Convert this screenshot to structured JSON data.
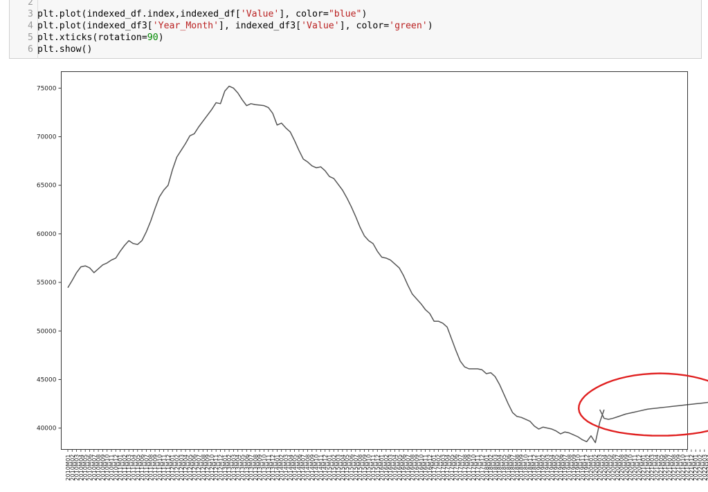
{
  "code_cell": {
    "lines": [
      {
        "num": "2",
        "segments": []
      },
      {
        "num": "3",
        "segments": [
          {
            "t": "plt.plot(indexed_df.index,indexed_df[",
            "k": "n"
          },
          {
            "t": "'Value'",
            "k": "s"
          },
          {
            "t": "], color=",
            "k": "n"
          },
          {
            "t": "\"blue\"",
            "k": "s"
          },
          {
            "t": ")",
            "k": "n"
          }
        ]
      },
      {
        "num": "4",
        "segments": [
          {
            "t": "plt.plot(indexed_df3[",
            "k": "n"
          },
          {
            "t": "'Year_Month'",
            "k": "s"
          },
          {
            "t": "], indexed_df3[",
            "k": "n"
          },
          {
            "t": "'Value'",
            "k": "s"
          },
          {
            "t": "], color=",
            "k": "n"
          },
          {
            "t": "'green'",
            "k": "s"
          },
          {
            "t": ")",
            "k": "n"
          }
        ]
      },
      {
        "num": "5",
        "segments": [
          {
            "t": "plt.xticks(rotation=",
            "k": "n"
          },
          {
            "t": "90",
            "k": "d"
          },
          {
            "t": ")",
            "k": "n"
          }
        ]
      },
      {
        "num": "6",
        "segments": [
          {
            "t": "plt.show()",
            "k": "n"
          }
        ]
      }
    ]
  },
  "chart_data": {
    "type": "line",
    "xlabel": "",
    "ylabel": "",
    "yticks": [
      40000,
      45000,
      50000,
      55000,
      60000,
      65000,
      70000,
      75000
    ],
    "ylim": [
      37800,
      76700
    ],
    "grid": false,
    "line_color": "#555555",
    "annotation_color": "#e02020",
    "xtick_labels": [
      "2010M01",
      "2010M02",
      "2010M03",
      "2010M04",
      "2010M05",
      "2010M06",
      "2010M07",
      "2010M08",
      "2010M09",
      "2010M10",
      "2010M11",
      "2010M12",
      "2011M01",
      "2011M02",
      "2011M03",
      "2011M04",
      "2011M05",
      "2011M06",
      "2011M07",
      "2011M08",
      "2011M09",
      "2011M10",
      "2011M11",
      "2011M12",
      "2012M01",
      "2012M02",
      "2012M03",
      "2012M04",
      "2012M05",
      "2012M06",
      "2012M07",
      "2012M08",
      "2012M09",
      "2012M10",
      "2012M11",
      "2012M12",
      "2013M01",
      "2013M02",
      "2013M03",
      "2013M04",
      "2013M05",
      "2013M06",
      "2013M07",
      "2013M08",
      "2013M09",
      "2013M10",
      "2013M11",
      "2013M12",
      "2014M01",
      "2014M02",
      "2014M03",
      "2014M04",
      "2014M05",
      "2014M06",
      "2014M07",
      "2014M08",
      "2014M09",
      "2014M10",
      "2014M11",
      "2014M12",
      "2015M01",
      "2015M02",
      "2015M03",
      "2015M04",
      "2015M05",
      "2015M06",
      "2015M07",
      "2015M08",
      "2015M09",
      "2015M10",
      "2015M11",
      "2015M12",
      "2016M01",
      "2016M02",
      "2016M03",
      "2016M04",
      "2016M05",
      "2016M06",
      "2016M07",
      "2016M08",
      "2016M09",
      "2016M10",
      "2016M11",
      "2016M12",
      "2017M01",
      "2017M02",
      "2017M03",
      "2017M04",
      "2017M05",
      "2017M06",
      "2017M07",
      "2017M08",
      "2017M09",
      "2017M10",
      "2017M11",
      "2017M12",
      "2018M01",
      "2018M02",
      "2018M03",
      "2018M04",
      "2018M05",
      "2018M06",
      "2018M07",
      "2018M08",
      "2018M09",
      "2018M10",
      "2018M11",
      "2018M12",
      "2019M01",
      "2019M02",
      "2019M03",
      "2019M04",
      "2019M05",
      "2019M06",
      "2019M07",
      "2019M08",
      "2019M09",
      "2019M10",
      "2019M11",
      "2019M12",
      "2020M01",
      "2020M02",
      "2020M03",
      "2020M04",
      "2020M05",
      "2020M06",
      "2020M07",
      "2020M08",
      "2020M09",
      "2020M10",
      "2020M11",
      "2020M12",
      "2021M01",
      "2021M02",
      "2021M03",
      "2021M04",
      "2021M05",
      "2021M06",
      "2021M07",
      "2021M08",
      "2021M09",
      "2021M10",
      "2021M11",
      "2021M12",
      "2022M01",
      "2022M02",
      "2022M03",
      "2022M04",
      "2022M05",
      "2022M06"
    ],
    "series": [
      {
        "x_start": "2010M01",
        "values": [
          54450,
          55200,
          56000,
          56600,
          56700,
          56500,
          56000,
          56400,
          56800,
          57000,
          57300,
          57500,
          58200,
          58800,
          59300,
          59000,
          58900,
          59300,
          60200,
          61300,
          62600,
          63800,
          64500,
          65000,
          66600,
          67900,
          68600,
          69300,
          70100,
          70300,
          71000,
          71600,
          72200,
          72800,
          73500,
          73400,
          74700,
          75200,
          75000,
          74500,
          73800,
          73200,
          73400,
          73300,
          73250,
          73200,
          73000,
          72400,
          71200,
          71400,
          70900,
          70500,
          69600,
          68600,
          67700,
          67400,
          67000,
          66800,
          66900,
          66500,
          65900,
          65700,
          65100,
          64500,
          63700,
          62800,
          61800,
          60700,
          59800,
          59300,
          59000,
          58200,
          57600,
          57500,
          57300,
          56900,
          56500,
          55700,
          54700,
          53800,
          53300,
          52800,
          52200,
          51800,
          51000,
          51000,
          50800,
          50400,
          49200,
          48000,
          46900,
          46300,
          46100,
          46100,
          46100,
          46000,
          45600,
          45700,
          45300,
          44500,
          43500,
          42500,
          41600,
          41200,
          41100,
          40900,
          40700,
          40200,
          39900,
          40100,
          40000,
          39900,
          39700,
          39400,
          39600,
          39500,
          39300,
          39100,
          38800,
          38600,
          39200,
          38500,
          40600,
          41900
        ]
      },
      {
        "x_start": "2020M03",
        "values": [
          41900,
          41000,
          40900,
          41000,
          41150,
          41300,
          41450,
          41550,
          41650,
          41750,
          41850,
          41950,
          42000,
          42050,
          42100,
          42150,
          42200,
          42250,
          42300,
          42350,
          42400,
          42450,
          42500,
          42550,
          42600,
          42650,
          42700,
          42750
        ]
      }
    ]
  }
}
